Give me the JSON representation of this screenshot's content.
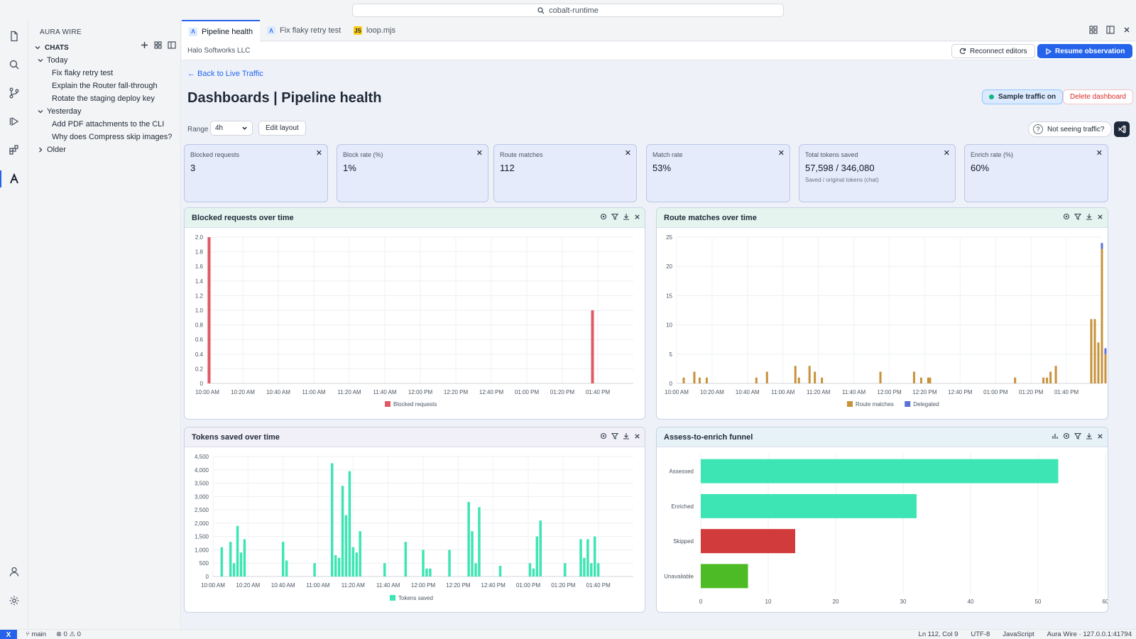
{
  "window": {
    "search": "cobalt-runtime"
  },
  "sidebar": {
    "title": "AURA WIRE",
    "section": "CHATS",
    "groups": [
      {
        "label": "Today",
        "items": [
          "Fix flaky retry test",
          "Explain the Router fall-through",
          "Rotate the staging deploy key"
        ]
      },
      {
        "label": "Yesterday",
        "items": [
          "Add PDF attachments to the CLI",
          "Why does Compress skip images?"
        ]
      },
      {
        "label": "Older",
        "items": []
      }
    ]
  },
  "tabs": [
    {
      "label": "Pipeline health",
      "icon": "aura-icon"
    },
    {
      "label": "Fix flaky retry test",
      "icon": "aura-icon"
    },
    {
      "label": "loop.mjs",
      "icon": "js-icon",
      "badge": "JS"
    }
  ],
  "subbar": {
    "org": "Halo Softworks LLC",
    "reconnect": "Reconnect editors",
    "resume": "Resume observation"
  },
  "page": {
    "back": "← Back to Live Traffic",
    "title": "Dashboards | Pipeline health",
    "sample": "Sample traffic on",
    "delete": "Delete dashboard",
    "range_label": "Range",
    "range_value": "4h",
    "edit_layout": "Edit layout",
    "help": "Not seeing traffic?"
  },
  "kpis": [
    {
      "label": "Blocked requests",
      "value": "3"
    },
    {
      "label": "Block rate (%)",
      "value": "1%"
    },
    {
      "label": "Route matches",
      "value": "112"
    },
    {
      "label": "Match rate",
      "value": "53%"
    },
    {
      "label": "Total tokens saved",
      "value": "57,598 / 346,080",
      "sub": "Saved / original tokens (chat)"
    },
    {
      "label": "Enrich rate (%)",
      "value": "60%"
    }
  ],
  "colors": {
    "accent": "#2563eb",
    "blocked": "#e05a63",
    "route": "#c7923a",
    "delegated": "#5b73d6",
    "tokens": "#3ee5b4",
    "skipped": "#d23b3b",
    "unavailable": "#4cbb25"
  },
  "chart_data": [
    {
      "id": "blocked",
      "type": "bar",
      "title": "Blocked requests over time",
      "x_labels": [
        "10:00 AM",
        "10:20 AM",
        "10:40 AM",
        "11:00 AM",
        "11:20 AM",
        "11:40 AM",
        "12:00 PM",
        "12:20 PM",
        "12:40 PM",
        "01:00 PM",
        "01:20 PM",
        "01:40 PM"
      ],
      "ylim": [
        0,
        2
      ],
      "y_ticks": [
        "0",
        "0.2",
        "0.4",
        "0.6",
        "0.8",
        "1.0",
        "1.2",
        "1.4",
        "1.6",
        "1.8",
        "2.0"
      ],
      "series": [
        {
          "name": "Blocked requests",
          "points": [
            [
              1,
              2
            ],
            [
              217,
              1
            ]
          ]
        }
      ]
    },
    {
      "id": "routes",
      "type": "bar",
      "title": "Route matches over time",
      "x_labels": [
        "10:00 AM",
        "10:20 AM",
        "10:40 AM",
        "11:00 AM",
        "11:20 AM",
        "11:40 AM",
        "12:00 PM",
        "12:20 PM",
        "12:40 PM",
        "01:00 PM",
        "01:20 PM",
        "01:40 PM"
      ],
      "ylim": [
        0,
        25
      ],
      "y_ticks": [
        "0",
        "5",
        "10",
        "15",
        "20",
        "25"
      ],
      "series": [
        {
          "name": "Route matches",
          "points": [
            [
              4,
              1
            ],
            [
              10,
              2
            ],
            [
              13,
              1
            ],
            [
              17,
              1
            ],
            [
              45,
              1
            ],
            [
              51,
              2
            ],
            [
              67,
              3
            ],
            [
              69,
              1
            ],
            [
              75,
              3
            ],
            [
              78,
              2
            ],
            [
              82,
              1
            ],
            [
              115,
              2
            ],
            [
              134,
              2
            ],
            [
              138,
              1
            ],
            [
              142,
              1
            ],
            [
              143,
              1
            ],
            [
              191,
              1
            ],
            [
              207,
              1
            ],
            [
              209,
              1
            ],
            [
              211,
              2
            ],
            [
              214,
              3
            ],
            [
              234,
              11
            ],
            [
              236,
              11
            ],
            [
              238,
              7
            ],
            [
              240,
              23
            ],
            [
              242,
              5
            ],
            [
              244,
              9
            ],
            [
              246,
              12
            ]
          ]
        },
        {
          "name": "Delegated",
          "points": [
            [
              240,
              1
            ],
            [
              242,
              1
            ],
            [
              244,
              1
            ]
          ]
        }
      ]
    },
    {
      "id": "tokens",
      "type": "bar",
      "title": "Tokens saved over time",
      "x_labels": [
        "10:00 AM",
        "10:20 AM",
        "10:40 AM",
        "11:00 AM",
        "11:20 AM",
        "11:40 AM",
        "12:00 PM",
        "12:20 PM",
        "12:40 PM",
        "01:00 PM",
        "01:20 PM",
        "01:40 PM"
      ],
      "ylim": [
        0,
        4500
      ],
      "y_ticks": [
        "0",
        "500",
        "1,000",
        "1,500",
        "2,000",
        "2,500",
        "3,000",
        "3,500",
        "4,000",
        "4,500"
      ],
      "series": [
        {
          "name": "Tokens saved",
          "points": [
            [
              5,
              1100
            ],
            [
              10,
              1300
            ],
            [
              12,
              500
            ],
            [
              14,
              1900
            ],
            [
              16,
              900
            ],
            [
              18,
              1400
            ],
            [
              40,
              1300
            ],
            [
              42,
              600
            ],
            [
              58,
              500
            ],
            [
              68,
              4250
            ],
            [
              70,
              800
            ],
            [
              72,
              700
            ],
            [
              74,
              3400
            ],
            [
              76,
              2300
            ],
            [
              78,
              3950
            ],
            [
              80,
              1100
            ],
            [
              82,
              900
            ],
            [
              84,
              1700
            ],
            [
              98,
              500
            ],
            [
              110,
              1300
            ],
            [
              120,
              1000
            ],
            [
              122,
              300
            ],
            [
              124,
              300
            ],
            [
              135,
              1000
            ],
            [
              146,
              2800
            ],
            [
              148,
              1700
            ],
            [
              150,
              500
            ],
            [
              152,
              2600
            ],
            [
              164,
              400
            ],
            [
              181,
              500
            ],
            [
              183,
              300
            ],
            [
              185,
              1500
            ],
            [
              187,
              2100
            ],
            [
              201,
              500
            ],
            [
              210,
              1400
            ],
            [
              212,
              700
            ],
            [
              214,
              1400
            ],
            [
              216,
              500
            ],
            [
              218,
              1500
            ],
            [
              220,
              500
            ]
          ]
        }
      ]
    },
    {
      "id": "funnel",
      "type": "bar",
      "orientation": "horizontal",
      "title": "Assess-to-enrich funnel",
      "categories": [
        "Assessed",
        "Enriched",
        "Skipped",
        "Unavailable"
      ],
      "values": [
        53,
        32,
        14,
        7
      ],
      "xlim": [
        0,
        60
      ],
      "x_ticks": [
        "0",
        "10",
        "20",
        "30",
        "40",
        "50",
        "60"
      ]
    }
  ],
  "status": {
    "logo": "X",
    "branch": "main",
    "problems": "⊗ 0 ⚠ 0",
    "cursor": "Ln 112, Col 9",
    "encoding": "UTF-8",
    "language": "JavaScript",
    "server": "Aura Wire · 127.0.0.1:41794"
  }
}
